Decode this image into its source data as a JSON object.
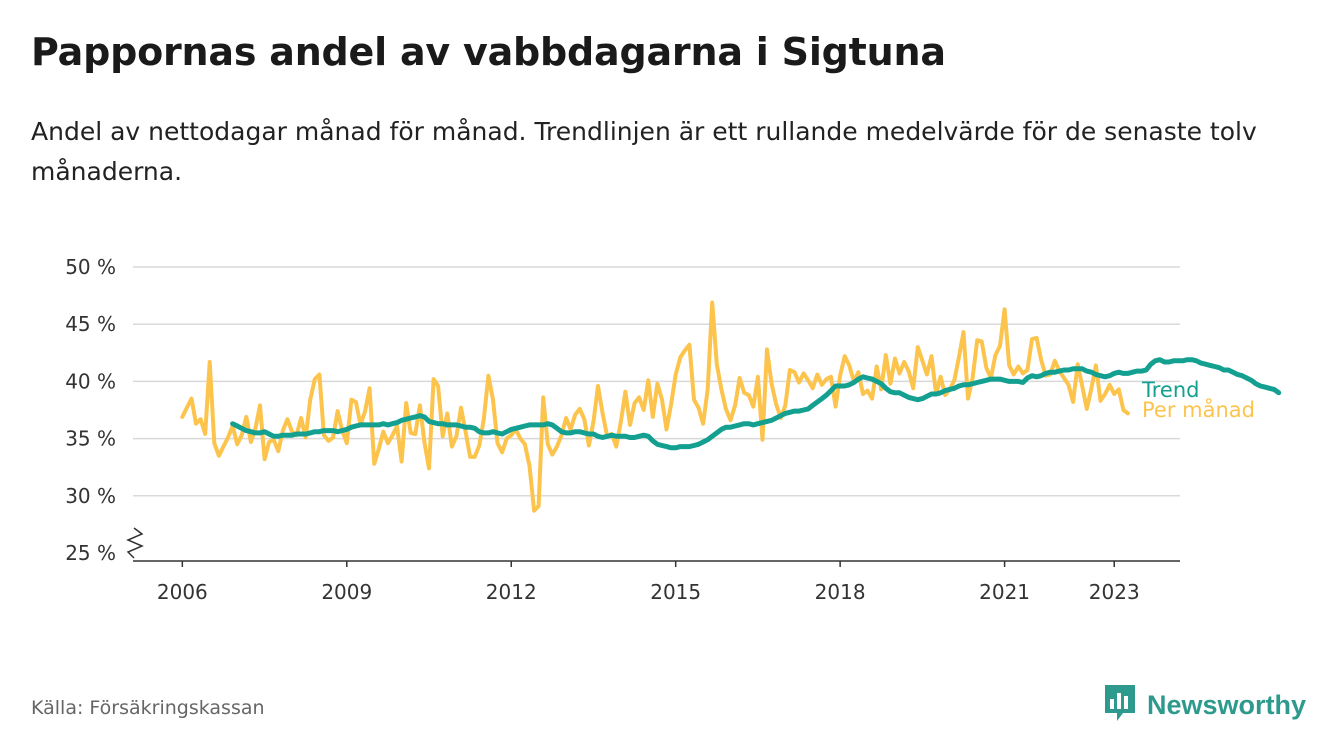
{
  "header": {
    "title": "Pappornas andel av vabbdagarna i Sigtuna",
    "subtitle": "Andel av nettodagar månad för månad. Trendlinjen är ett rullande medelvärde för de senaste tolv månaderna."
  },
  "footer": {
    "source": "Källa: Försäkringskassan",
    "brand": "Newsworthy",
    "brand_icon": "bar-chart-logo-icon"
  },
  "colors": {
    "monthly": "#fcc44d",
    "trend": "#13a090",
    "grid": "#d9d9d9",
    "axis": "#333333",
    "brand": "#2e9a8e"
  },
  "chart_data": {
    "type": "line",
    "y_tick_labels": [
      "25 %",
      "30 %",
      "35 %",
      "40 %",
      "45 %",
      "50 %"
    ],
    "x_tick_labels": [
      "2006",
      "2009",
      "2012",
      "2015",
      "2018",
      "2021",
      "2023"
    ],
    "x_ticks": [
      2006,
      2009,
      2012,
      2015,
      2018,
      2021,
      2023
    ],
    "xlim": [
      2005.1,
      2024.2
    ],
    "ylim": [
      25,
      50
    ],
    "y_axis_break": true,
    "grid": true,
    "legend": "end-of-line labels, right",
    "series": [
      {
        "name": "Per månad",
        "x_start": 2006.0,
        "step": 0.0833333,
        "values": [
          36.9,
          37.7,
          38.5,
          36.3,
          36.7,
          35.4,
          41.7,
          34.6,
          33.5,
          34.3,
          35.1,
          36.1,
          34.5,
          35.3,
          36.9,
          34.7,
          35.9,
          37.9,
          33.2,
          34.7,
          34.9,
          33.9,
          35.7,
          36.7,
          35.6,
          35.3,
          36.8,
          35.1,
          38.4,
          40.2,
          40.6,
          35.3,
          34.8,
          35.1,
          37.4,
          35.7,
          34.6,
          38.4,
          38.2,
          36.2,
          37.4,
          39.4,
          32.8,
          34.1,
          35.6,
          34.6,
          35.3,
          36.1,
          33.0,
          38.1,
          35.5,
          35.4,
          37.9,
          34.7,
          32.4,
          40.2,
          39.6,
          35.2,
          37.2,
          34.3,
          35.2,
          37.7,
          35.6,
          33.4,
          33.4,
          34.4,
          36.7,
          40.5,
          38.4,
          34.6,
          33.8,
          35.0,
          35.3,
          35.8,
          35.0,
          34.5,
          32.6,
          28.7,
          29.1,
          38.6,
          34.5,
          33.6,
          34.3,
          35.3,
          36.8,
          35.8,
          37.1,
          37.6,
          36.7,
          34.4,
          36.5,
          39.6,
          37.2,
          35.2,
          35.4,
          34.3,
          36.5,
          39.1,
          36.2,
          38.1,
          38.6,
          37.5,
          40.1,
          36.9,
          39.8,
          38.4,
          35.8,
          38.0,
          40.6,
          42.1,
          42.7,
          43.2,
          38.4,
          37.7,
          36.3,
          39.3,
          46.9,
          41.5,
          39.3,
          37.6,
          36.6,
          37.9,
          40.3,
          39.0,
          38.8,
          37.8,
          40.4,
          34.9,
          42.8,
          39.8,
          38.0,
          36.8,
          37.9,
          41.0,
          40.8,
          39.9,
          40.7,
          40.1,
          39.4,
          40.6,
          39.7,
          40.2,
          40.4,
          37.8,
          40.5,
          42.2,
          41.4,
          40.0,
          40.8,
          38.9,
          39.2,
          38.5,
          41.3,
          39.3,
          42.3,
          39.8,
          42.0,
          40.7,
          41.7,
          40.9,
          39.4,
          43.0,
          41.8,
          40.6,
          42.2,
          38.9,
          40.4,
          38.8,
          39.3,
          40.1,
          42.1,
          44.3,
          38.5,
          40.3,
          43.6,
          43.5,
          41.2,
          40.3,
          42.3,
          43.1,
          46.3,
          41.4,
          40.6,
          41.3,
          40.7,
          41.0,
          43.7,
          43.8,
          41.9,
          40.5,
          40.6,
          41.8,
          40.9,
          40.3,
          39.7,
          38.2,
          41.5,
          39.6,
          37.6,
          39.4,
          41.4,
          38.3,
          38.9,
          39.7,
          38.9,
          39.3,
          37.5,
          37.2
        ]
      },
      {
        "name": "Trend",
        "x_start": 2006.9167,
        "step": 0.0833333,
        "values": [
          36.3,
          36.1,
          35.9,
          35.7,
          35.6,
          35.5,
          35.5,
          35.6,
          35.4,
          35.2,
          35.2,
          35.3,
          35.3,
          35.3,
          35.4,
          35.4,
          35.4,
          35.5,
          35.6,
          35.6,
          35.7,
          35.7,
          35.7,
          35.6,
          35.7,
          35.8,
          36.0,
          36.1,
          36.2,
          36.2,
          36.2,
          36.2,
          36.2,
          36.3,
          36.2,
          36.3,
          36.4,
          36.6,
          36.7,
          36.8,
          36.9,
          37.0,
          36.9,
          36.5,
          36.4,
          36.3,
          36.3,
          36.2,
          36.2,
          36.2,
          36.1,
          36.0,
          36.0,
          35.9,
          35.6,
          35.5,
          35.5,
          35.6,
          35.5,
          35.4,
          35.6,
          35.8,
          35.9,
          36.0,
          36.1,
          36.2,
          36.2,
          36.2,
          36.2,
          36.3,
          36.2,
          35.9,
          35.6,
          35.5,
          35.5,
          35.6,
          35.6,
          35.5,
          35.4,
          35.4,
          35.2,
          35.1,
          35.2,
          35.3,
          35.2,
          35.2,
          35.2,
          35.1,
          35.1,
          35.2,
          35.3,
          35.2,
          34.8,
          34.5,
          34.4,
          34.3,
          34.2,
          34.2,
          34.3,
          34.3,
          34.3,
          34.4,
          34.5,
          34.7,
          34.9,
          35.2,
          35.5,
          35.8,
          36.0,
          36.0,
          36.1,
          36.2,
          36.3,
          36.3,
          36.2,
          36.3,
          36.4,
          36.5,
          36.6,
          36.8,
          37.0,
          37.2,
          37.3,
          37.4,
          37.4,
          37.5,
          37.6,
          37.9,
          38.2,
          38.5,
          38.8,
          39.2,
          39.6,
          39.6,
          39.6,
          39.7,
          39.9,
          40.2,
          40.4,
          40.3,
          40.2,
          40.0,
          39.8,
          39.4,
          39.1,
          39.0,
          39.0,
          38.8,
          38.6,
          38.5,
          38.4,
          38.5,
          38.7,
          38.9,
          38.9,
          39.0,
          39.2,
          39.3,
          39.4,
          39.6,
          39.7,
          39.7,
          39.8,
          39.9,
          40.0,
          40.1,
          40.2,
          40.2,
          40.2,
          40.1,
          40.0,
          40.0,
          40.0,
          39.9,
          40.3,
          40.5,
          40.4,
          40.5,
          40.7,
          40.8,
          40.8,
          40.9,
          41.0,
          41.0,
          41.1,
          41.1,
          41.1,
          40.9,
          40.8,
          40.6,
          40.5,
          40.4,
          40.5,
          40.7,
          40.8,
          40.7,
          40.7,
          40.8,
          40.9,
          40.9,
          41.0,
          41.5,
          41.8,
          41.9,
          41.7,
          41.7,
          41.8,
          41.8,
          41.8,
          41.9,
          41.9,
          41.8,
          41.6,
          41.5,
          41.4,
          41.3,
          41.2,
          41.0,
          41.0,
          40.8,
          40.6,
          40.5,
          40.3,
          40.1,
          39.8,
          39.6,
          39.5,
          39.4,
          39.3,
          39.0
        ]
      }
    ],
    "end_labels": [
      "Trend",
      "Per månad"
    ]
  }
}
